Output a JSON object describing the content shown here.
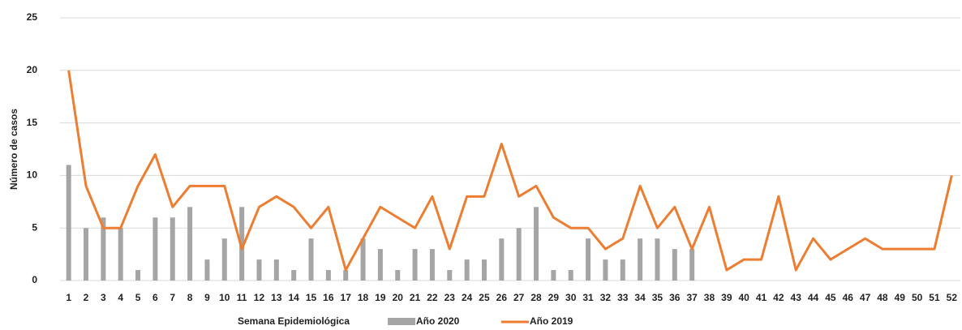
{
  "chart_data": {
    "type": "bar_line",
    "x_label": "Semana Epidemiológica",
    "y_label": "Número de casos",
    "categories": [
      "1",
      "2",
      "3",
      "4",
      "5",
      "6",
      "7",
      "8",
      "9",
      "10",
      "11",
      "12",
      "13",
      "14",
      "15",
      "16",
      "17",
      "18",
      "19",
      "20",
      "21",
      "22",
      "23",
      "24",
      "25",
      "26",
      "27",
      "28",
      "29",
      "30",
      "31",
      "32",
      "33",
      "34",
      "35",
      "36",
      "37",
      "38",
      "39",
      "40",
      "41",
      "42",
      "43",
      "44",
      "45",
      "46",
      "47",
      "48",
      "49",
      "50",
      "51",
      "52"
    ],
    "series": [
      {
        "name": "Año 2020",
        "kind": "bar",
        "color": "#a5a5a5",
        "values": [
          11,
          5,
          6,
          5,
          1,
          6,
          6,
          7,
          2,
          4,
          7,
          2,
          2,
          1,
          4,
          1,
          1,
          4,
          3,
          1,
          3,
          3,
          1,
          2,
          2,
          4,
          5,
          7,
          1,
          1,
          4,
          2,
          2,
          4,
          4,
          3,
          3,
          null,
          null,
          null,
          null,
          null,
          null,
          null,
          null,
          null,
          null,
          null,
          null,
          null,
          null,
          null
        ]
      },
      {
        "name": "Año 2019",
        "kind": "line",
        "color": "#ed7d31",
        "values": [
          20,
          9,
          5,
          5,
          9,
          12,
          7,
          9,
          9,
          9,
          3,
          7,
          8,
          7,
          5,
          7,
          1,
          4,
          7,
          6,
          5,
          8,
          3,
          8,
          8,
          13,
          8,
          9,
          6,
          5,
          5,
          3,
          4,
          9,
          5,
          7,
          3,
          7,
          1,
          2,
          2,
          8,
          1,
          4,
          2,
          3,
          4,
          3,
          3,
          3,
          3,
          10
        ]
      }
    ],
    "ylim": [
      0,
      25
    ],
    "yticks": [
      0,
      5,
      10,
      15,
      20,
      25
    ],
    "grid": true,
    "legend": "bottom"
  }
}
